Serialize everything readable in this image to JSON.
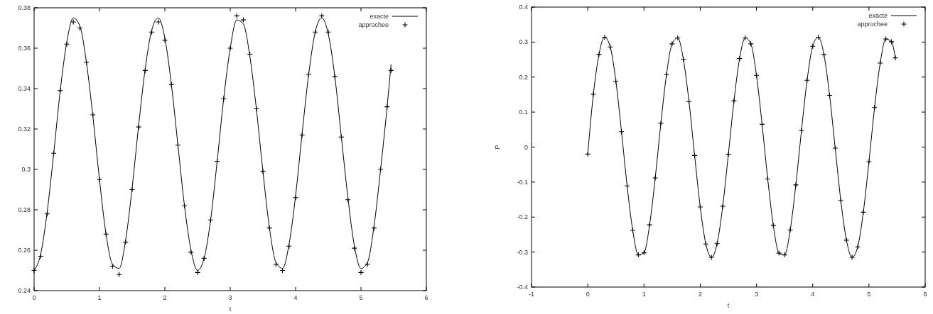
{
  "chart_data": [
    {
      "type": "line",
      "xlabel": "t",
      "x": [
        0,
        0.1,
        0.2,
        0.3,
        0.4,
        0.5,
        0.6,
        0.7,
        0.8,
        0.9,
        1,
        1.1,
        1.2,
        1.3,
        1.4,
        1.5,
        1.6,
        1.7,
        1.8,
        1.9,
        2,
        2.1,
        2.2,
        2.3,
        2.4,
        2.5,
        2.6,
        2.7,
        2.8,
        2.9,
        3,
        3.1,
        3.2,
        3.3,
        3.4,
        3.5,
        3.6,
        3.7,
        3.8,
        3.9,
        4,
        4.1,
        4.2,
        4.3,
        4.4,
        4.5,
        4.6,
        4.7,
        4.8,
        4.9,
        5,
        5.1,
        5.2,
        5.3,
        5.4,
        5.46
      ],
      "xlim": [
        0,
        6
      ],
      "xticks": [
        0,
        1,
        2,
        3,
        4,
        5,
        6
      ],
      "ylim": [
        0.24,
        0.38
      ],
      "yticks": [
        {
          "value": 0.24,
          "label": "0.24"
        },
        {
          "value": 0.26,
          "label": "0.26"
        },
        {
          "value": 0.28,
          "label": "0.28"
        },
        {
          "value": 0.3,
          "label": "0.3"
        },
        {
          "value": 0.32,
          "label": "0.32"
        },
        {
          "value": 0.34,
          "label": "0.34"
        },
        {
          "value": 0.36,
          "label": "0.36"
        },
        {
          "value": 0.38,
          "label": "0.38"
        }
      ],
      "grid": false,
      "legend": "top right",
      "series": [
        {
          "name": "exacte",
          "color": "#000000",
          "type": "line",
          "values": [
            0.25,
            0.258,
            0.279,
            0.308,
            0.339,
            0.363,
            0.375,
            0.371,
            0.353,
            0.326,
            0.295,
            0.268,
            0.253,
            0.251,
            0.265,
            0.291,
            0.322,
            0.35,
            0.369,
            0.375,
            0.365,
            0.342,
            0.312,
            0.282,
            0.26,
            0.25,
            0.256,
            0.275,
            0.304,
            0.335,
            0.36,
            0.374,
            0.372,
            0.356,
            0.33,
            0.299,
            0.271,
            0.254,
            0.251,
            0.263,
            0.287,
            0.318,
            0.347,
            0.368,
            0.375,
            0.367,
            0.346,
            0.316,
            0.286,
            0.262,
            0.251,
            0.254,
            0.272,
            0.3,
            0.331,
            0.352
          ]
        },
        {
          "name": "approchee",
          "color": "#000000",
          "type": "scatter",
          "marker": "cross",
          "values": [
            0.25,
            0.257,
            0.278,
            0.308,
            0.339,
            0.362,
            0.373,
            0.37,
            0.353,
            0.327,
            0.295,
            0.268,
            0.252,
            0.248,
            0.264,
            0.29,
            0.321,
            0.349,
            0.368,
            0.373,
            0.364,
            0.342,
            0.312,
            0.282,
            0.259,
            0.249,
            0.256,
            0.275,
            0.304,
            0.335,
            0.36,
            0.376,
            0.374,
            0.357,
            0.33,
            0.299,
            0.271,
            0.253,
            0.25,
            0.262,
            0.286,
            0.317,
            0.347,
            0.368,
            0.376,
            0.368,
            0.346,
            0.316,
            0.285,
            0.261,
            0.249,
            0.253,
            0.271,
            0.3,
            0.331,
            0.349
          ]
        }
      ]
    },
    {
      "type": "line",
      "xlabel": "t",
      "ylabel": "P",
      "x": [
        0,
        0.1,
        0.2,
        0.3,
        0.4,
        0.5,
        0.6,
        0.7,
        0.8,
        0.9,
        1,
        1.1,
        1.2,
        1.3,
        1.4,
        1.5,
        1.6,
        1.7,
        1.8,
        1.9,
        2,
        2.1,
        2.2,
        2.3,
        2.4,
        2.5,
        2.6,
        2.7,
        2.8,
        2.9,
        3,
        3.1,
        3.2,
        3.3,
        3.4,
        3.5,
        3.6,
        3.7,
        3.8,
        3.9,
        4,
        4.1,
        4.2,
        4.3,
        4.4,
        4.5,
        4.6,
        4.7,
        4.8,
        4.9,
        5,
        5.1,
        5.2,
        5.3,
        5.4,
        5.47
      ],
      "xlim": [
        -1,
        6
      ],
      "xticks": [
        -1,
        0,
        1,
        2,
        3,
        4,
        5,
        6
      ],
      "ylim": [
        -0.4,
        0.4
      ],
      "yticks": [
        {
          "value": -0.4,
          "label": "-0.4"
        },
        {
          "value": -0.3,
          "label": "-0.3"
        },
        {
          "value": -0.2,
          "label": "-0.2"
        },
        {
          "value": -0.1,
          "label": "-0.1"
        },
        0,
        {
          "value": 0.1,
          "label": "0.1"
        },
        {
          "value": 0.2,
          "label": "0.2"
        },
        {
          "value": 0.3,
          "label": "0.3"
        },
        {
          "value": 0.4,
          "label": "0.4"
        }
      ],
      "grid": false,
      "legend": "top right",
      "series": [
        {
          "name": "exacte",
          "color": "#000000",
          "type": "line",
          "values": [
            -0.02,
            0.151,
            0.265,
            0.314,
            0.286,
            0.188,
            0.044,
            -0.111,
            -0.238,
            -0.308,
            -0.302,
            -0.222,
            -0.088,
            0.068,
            0.207,
            0.295,
            0.312,
            0.251,
            0.13,
            -0.024,
            -0.171,
            -0.277,
            -0.315,
            -0.276,
            -0.169,
            -0.021,
            0.132,
            0.253,
            0.312,
            0.295,
            0.205,
            0.065,
            -0.091,
            -0.224,
            -0.303,
            -0.308,
            -0.237,
            -0.108,
            0.047,
            0.191,
            0.288,
            0.314,
            0.264,
            0.148,
            -0.003,
            -0.153,
            -0.266,
            -0.315,
            -0.285,
            -0.186,
            -0.042,
            0.113,
            0.24,
            0.309,
            0.301,
            0.255
          ]
        },
        {
          "name": "approchee",
          "color": "#000000",
          "type": "scatter",
          "marker": "cross",
          "values": [
            -0.02,
            0.151,
            0.265,
            0.314,
            0.286,
            0.188,
            0.044,
            -0.111,
            -0.238,
            -0.308,
            -0.302,
            -0.222,
            -0.088,
            0.068,
            0.207,
            0.295,
            0.312,
            0.251,
            0.13,
            -0.024,
            -0.171,
            -0.277,
            -0.315,
            -0.276,
            -0.169,
            -0.021,
            0.132,
            0.253,
            0.312,
            0.295,
            0.205,
            0.065,
            -0.091,
            -0.224,
            -0.303,
            -0.308,
            -0.237,
            -0.108,
            0.047,
            0.191,
            0.288,
            0.314,
            0.264,
            0.148,
            -0.003,
            -0.153,
            -0.266,
            -0.315,
            -0.285,
            -0.186,
            -0.042,
            0.113,
            0.24,
            0.309,
            0.301,
            0.255
          ]
        }
      ]
    }
  ]
}
